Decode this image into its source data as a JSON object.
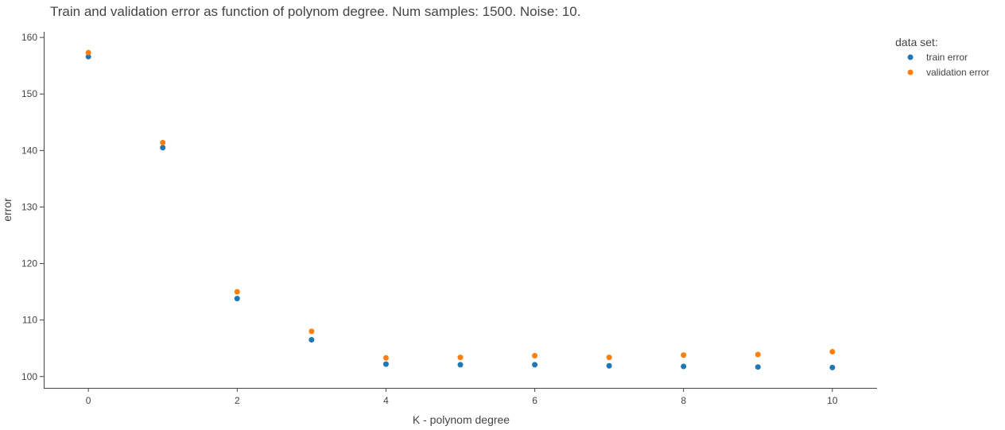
{
  "chart_data": {
    "type": "scatter",
    "title": "Train and validation error as function of polynom degree. Num samples: 1500. Noise: 10.",
    "xlabel": "K - polynom degree",
    "ylabel": "error",
    "xlim": [
      -0.6,
      10.6
    ],
    "ylim": [
      98,
      161
    ],
    "x_ticks": [
      0,
      2,
      4,
      6,
      8,
      10
    ],
    "y_ticks": [
      100,
      110,
      120,
      130,
      140,
      150,
      160
    ],
    "grid": false,
    "legend": {
      "title": "data set:",
      "placement": "top-right outside"
    },
    "x": [
      0,
      1,
      2,
      3,
      4,
      5,
      6,
      7,
      8,
      9,
      10
    ],
    "series": [
      {
        "name": "train error",
        "color": "#1f77b4",
        "values": [
          156.6,
          140.5,
          113.8,
          106.5,
          102.2,
          102.1,
          102.1,
          101.9,
          101.8,
          101.7,
          101.6
        ]
      },
      {
        "name": "validation error",
        "color": "#ff7f0e",
        "values": [
          157.3,
          141.4,
          115.0,
          108.0,
          103.3,
          103.4,
          103.7,
          103.4,
          103.8,
          103.9,
          104.4
        ]
      }
    ]
  }
}
